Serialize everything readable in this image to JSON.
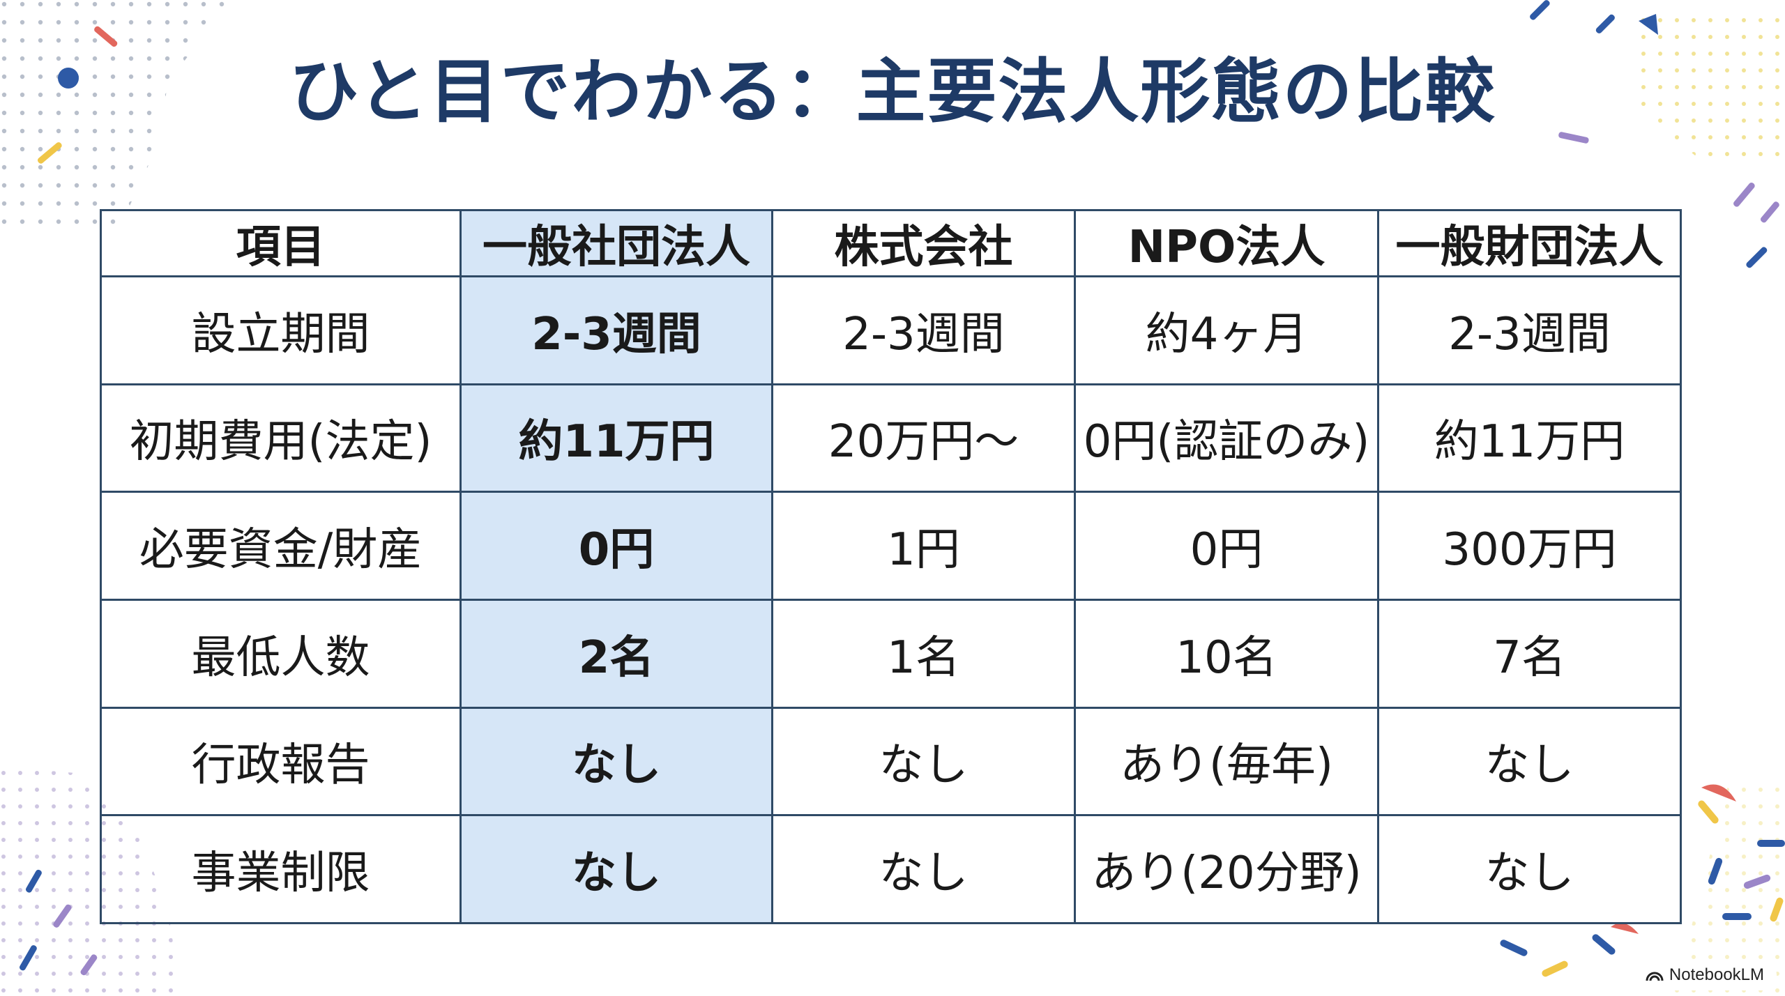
{
  "title": "ひと目でわかる：主要法人形態の比較",
  "table": {
    "headers": [
      "項目",
      "一般社団法人",
      "株式会社",
      "NPO法人",
      "一般財団法人"
    ],
    "rows": [
      [
        "設立期間",
        "2-3週間",
        "2-3週間",
        "約4ヶ月",
        "2-3週間"
      ],
      [
        "初期費用(法定)",
        "約11万円",
        "20万円〜",
        "0円(認証のみ)",
        "約11万円"
      ],
      [
        "必要資金/財産",
        "0円",
        "1円",
        "0円",
        "300万円"
      ],
      [
        "最低人数",
        "2名",
        "1名",
        "10名",
        "7名"
      ],
      [
        "行政報告",
        "なし",
        "なし",
        "あり(毎年)",
        "なし"
      ],
      [
        "事業制限",
        "なし",
        "なし",
        "あり(20分野)",
        "なし"
      ]
    ]
  },
  "colors": {
    "title": "#1e3a66",
    "border": "#2f4a66",
    "highlight_column": "#d6e6f7"
  },
  "badge": {
    "label": "NotebookLM",
    "icon": "notebooklm-logo-icon"
  }
}
